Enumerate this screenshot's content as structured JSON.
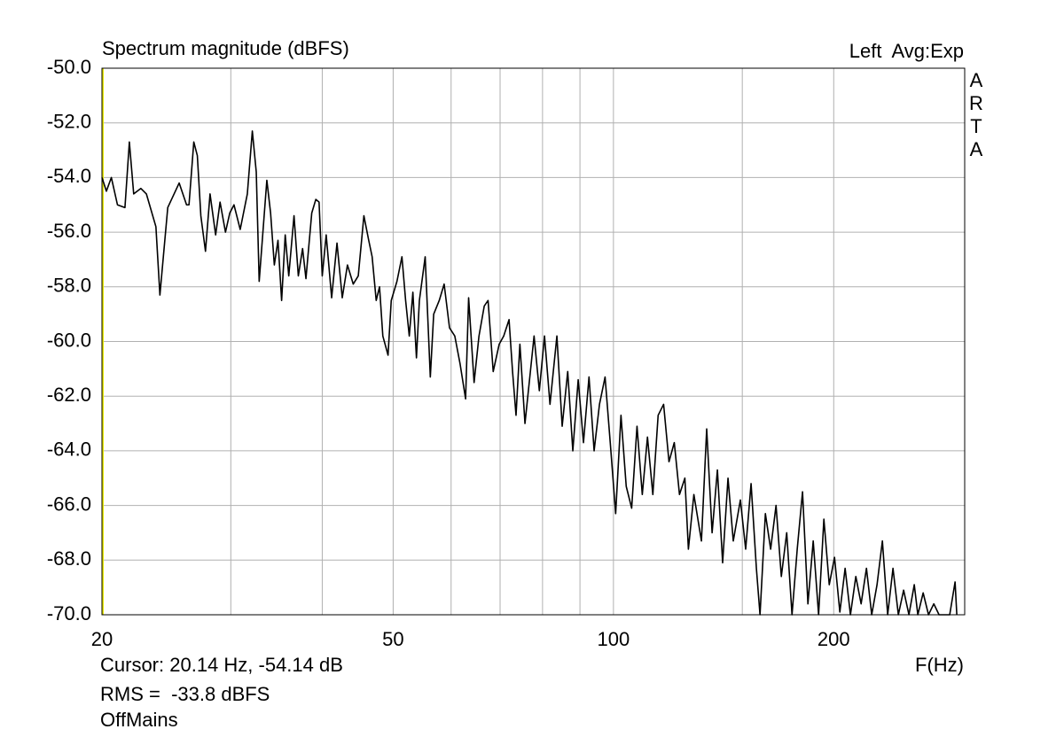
{
  "chart_data": {
    "type": "line",
    "title": "Spectrum magnitude (dBFS)",
    "channel_info": "Left  Avg:Exp",
    "brand": "ARTA",
    "x_label": "F(Hz)",
    "cursor_text": "Cursor: 20.14 Hz, -54.14 dB",
    "rms_text": "RMS =  -33.8 dBFS",
    "mode_text": "OffMains",
    "x_scale": "log",
    "grid": true,
    "xlim": [
      20,
      302
    ],
    "xticks": [
      20,
      50,
      100,
      200
    ],
    "xgrid": [
      30,
      40,
      60,
      70,
      80,
      90,
      150
    ],
    "ylim": [
      -70,
      -50
    ],
    "yticks": [
      {
        "value": -50,
        "label": "-50.0"
      },
      {
        "value": -52,
        "label": "-52.0"
      },
      {
        "value": -54,
        "label": "-54.0"
      },
      {
        "value": -56,
        "label": "-56.0"
      },
      {
        "value": -58,
        "label": "-58.0"
      },
      {
        "value": -60,
        "label": "-60.0"
      },
      {
        "value": -62,
        "label": "-62.0"
      },
      {
        "value": -64,
        "label": "-64.0"
      },
      {
        "value": -66,
        "label": "-66.0"
      },
      {
        "value": -68,
        "label": "-68.0"
      },
      {
        "value": -70,
        "label": "-70.0"
      }
    ],
    "x": [
      20,
      20.28,
      20.6,
      21.0,
      21.5,
      21.8,
      22.1,
      22.6,
      23.0,
      23.7,
      24.0,
      24.6,
      25.5,
      26.1,
      26.3,
      26.7,
      27.0,
      27.3,
      27.7,
      28.1,
      28.6,
      29.0,
      29.5,
      29.9,
      30.3,
      30.9,
      31.6,
      32.1,
      32.5,
      32.8,
      33.6,
      34.0,
      34.4,
      34.8,
      35.2,
      35.6,
      36.0,
      36.6,
      37.1,
      37.6,
      38.0,
      38.7,
      39.2,
      39.6,
      40.0,
      40.5,
      41.2,
      41.9,
      42.6,
      43.3,
      44.1,
      44.8,
      45.6,
      46.3,
      46.8,
      47.4,
      47.9,
      48.4,
      49.2,
      49.7,
      50.6,
      51.4,
      52.0,
      52.6,
      53.2,
      53.8,
      54.3,
      55.3,
      56.2,
      56.8,
      57.8,
      58.7,
      59.7,
      60.7,
      61.7,
      62.8,
      63.4,
      64.5,
      65.5,
      66.6,
      67.4,
      68.5,
      69.8,
      70.8,
      72.0,
      72.8,
      73.6,
      74.5,
      75.7,
      77.0,
      77.9,
      79.2,
      80.5,
      81.9,
      83.7,
      85.1,
      86.6,
      88.0,
      89.5,
      91.0,
      92.6,
      94.1,
      95.7,
      97.4,
      99.0,
      100.7,
      102.4,
      104.1,
      105.9,
      107.7,
      109.5,
      111.3,
      113.2,
      115.1,
      117.1,
      119.1,
      121.1,
      123.1,
      125.2,
      126.6,
      128.8,
      131.9,
      134.1,
      136.4,
      138.7,
      141.0,
      143.4,
      145.8,
      149.1,
      151.6,
      154.2,
      156.8,
      158.6,
      161.3,
      164.0,
      166.8,
      169.6,
      172.5,
      175.4,
      178.3,
      181.3,
      184.4,
      187.5,
      190.7,
      193.9,
      197.2,
      200.5,
      203.9,
      207.3,
      210.8,
      214.4,
      218.0,
      221.7,
      225.4,
      229.2,
      233.1,
      237.0,
      241.0,
      245.1,
      249.2,
      253.4,
      257.7,
      260.6,
      265.0,
      269.5,
      274.0,
      278.6,
      283.3,
      288.1,
      293.0,
      294.6
    ],
    "series": [
      {
        "name": "Left",
        "color": "#000000",
        "values": [
          -54.0,
          -54.5,
          -54.0,
          -55.0,
          -55.1,
          -52.7,
          -54.6,
          -54.4,
          -54.6,
          -55.8,
          -58.3,
          -55.1,
          -54.2,
          -55.0,
          -55.0,
          -52.7,
          -53.2,
          -55.4,
          -56.7,
          -54.6,
          -56.1,
          -54.9,
          -56.0,
          -55.3,
          -55.0,
          -55.9,
          -54.6,
          -52.3,
          -53.8,
          -57.8,
          -54.1,
          -55.3,
          -57.2,
          -56.3,
          -58.5,
          -56.1,
          -57.6,
          -55.4,
          -57.6,
          -56.6,
          -57.7,
          -55.3,
          -54.8,
          -54.9,
          -57.6,
          -56.1,
          -58.4,
          -56.4,
          -58.4,
          -57.2,
          -57.9,
          -57.6,
          -55.4,
          -56.3,
          -56.9,
          -58.5,
          -58.0,
          -59.8,
          -60.5,
          -58.5,
          -57.8,
          -56.9,
          -58.5,
          -59.8,
          -58.2,
          -60.6,
          -58.5,
          -56.9,
          -61.3,
          -59.0,
          -58.5,
          -57.9,
          -59.5,
          -59.8,
          -60.8,
          -62.1,
          -58.4,
          -61.5,
          -59.8,
          -58.7,
          -58.5,
          -61.1,
          -60.1,
          -59.8,
          -59.2,
          -61.1,
          -62.7,
          -60.1,
          -63.0,
          -61.1,
          -59.8,
          -61.8,
          -59.8,
          -62.3,
          -59.8,
          -63.1,
          -61.1,
          -64.0,
          -61.4,
          -63.7,
          -61.3,
          -64.0,
          -62.3,
          -61.3,
          -63.7,
          -66.3,
          -62.7,
          -65.3,
          -66.1,
          -63.1,
          -65.6,
          -63.5,
          -65.6,
          -62.7,
          -62.3,
          -64.4,
          -63.7,
          -65.6,
          -65.0,
          -67.6,
          -65.6,
          -67.3,
          -63.2,
          -67.0,
          -64.7,
          -68.1,
          -65.0,
          -67.3,
          -65.8,
          -67.6,
          -65.2,
          -68.3,
          -70.0,
          -66.3,
          -67.6,
          -66.0,
          -68.6,
          -67.0,
          -70.0,
          -67.6,
          -65.5,
          -69.6,
          -67.3,
          -70.0,
          -66.5,
          -68.9,
          -67.9,
          -69.9,
          -68.3,
          -70.0,
          -68.6,
          -69.6,
          -68.3,
          -70.0,
          -68.9,
          -67.3,
          -70.0,
          -68.3,
          -70.0,
          -69.1,
          -70.0,
          -68.9,
          -70.0,
          -69.2,
          -70.0,
          -69.6,
          -70.0,
          -70.0,
          -70.0,
          -68.8,
          -70.0
        ]
      }
    ],
    "rms_color": "#c00000",
    "cursor_color": "#e8e800",
    "grid_color": "#b0b0b0"
  }
}
